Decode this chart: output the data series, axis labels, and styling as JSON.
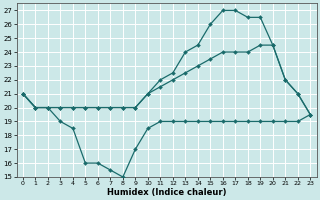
{
  "xlabel": "Humidex (Indice chaleur)",
  "bg_color": "#cce8e8",
  "grid_color": "#ffffff",
  "line_color": "#1a6b6b",
  "xlim": [
    -0.5,
    23.5
  ],
  "ylim": [
    15,
    27.5
  ],
  "xticks": [
    0,
    1,
    2,
    3,
    4,
    5,
    6,
    7,
    8,
    9,
    10,
    11,
    12,
    13,
    14,
    15,
    16,
    17,
    18,
    19,
    20,
    21,
    22,
    23
  ],
  "yticks": [
    15,
    16,
    17,
    18,
    19,
    20,
    21,
    22,
    23,
    24,
    25,
    26,
    27
  ],
  "line1_x": [
    0,
    1,
    2,
    3,
    4,
    5,
    6,
    7,
    8,
    9,
    10,
    11,
    12,
    13,
    14,
    15,
    16,
    17,
    18,
    19,
    20,
    21,
    22,
    23
  ],
  "line1_y": [
    21,
    20,
    20,
    19,
    18.5,
    16,
    16,
    15.5,
    15,
    17,
    18.5,
    19,
    19,
    19,
    19,
    19,
    19,
    19,
    19,
    19,
    19,
    19,
    19,
    19.5
  ],
  "line2_x": [
    0,
    1,
    2,
    3,
    4,
    5,
    6,
    7,
    8,
    9,
    10,
    11,
    12,
    13,
    14,
    15,
    16,
    17,
    18,
    19,
    20,
    21,
    22,
    23
  ],
  "line2_y": [
    21,
    20,
    20,
    20,
    20,
    20,
    20,
    20,
    20,
    20,
    21,
    21.5,
    22,
    22.5,
    23,
    23.5,
    24,
    24,
    24,
    24.5,
    24.5,
    22,
    21,
    19.5
  ],
  "line3_x": [
    0,
    1,
    2,
    3,
    4,
    5,
    6,
    7,
    8,
    9,
    10,
    11,
    12,
    13,
    14,
    15,
    16,
    17,
    18,
    19,
    20,
    21,
    22,
    23
  ],
  "line3_y": [
    21,
    20,
    20,
    20,
    20,
    20,
    20,
    20,
    20,
    20,
    21,
    22,
    22.5,
    24,
    24.5,
    26,
    27,
    27,
    26.5,
    26.5,
    24.5,
    22,
    21,
    19.5
  ]
}
